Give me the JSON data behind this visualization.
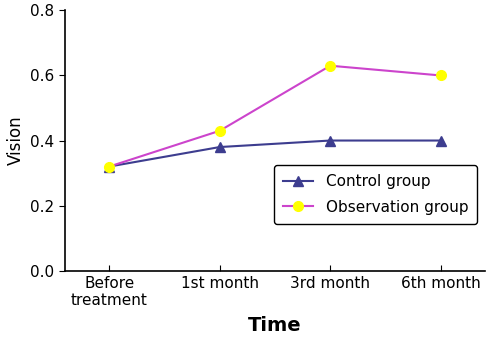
{
  "x_labels": [
    "Before\ntreatment",
    "1st month",
    "3rd month",
    "6th month"
  ],
  "x_positions": [
    0,
    1,
    2,
    3
  ],
  "control_values": [
    0.32,
    0.38,
    0.4,
    0.4
  ],
  "observation_values": [
    0.32,
    0.43,
    0.63,
    0.6
  ],
  "control_color": "#3d3d8f",
  "observation_color": "#cc44cc",
  "observation_marker_color": "#ffff00",
  "ylim": [
    0,
    0.8
  ],
  "yticks": [
    0,
    0.2,
    0.4,
    0.6,
    0.8
  ],
  "ylabel": "Vision",
  "xlabel": "Time",
  "legend_labels": [
    "Control group",
    "Observation group"
  ],
  "control_marker": "^",
  "observation_marker": "o",
  "linewidth": 1.5,
  "markersize": 7,
  "xlabel_fontsize": 14,
  "ylabel_fontsize": 12,
  "tick_fontsize": 11,
  "legend_fontsize": 11
}
